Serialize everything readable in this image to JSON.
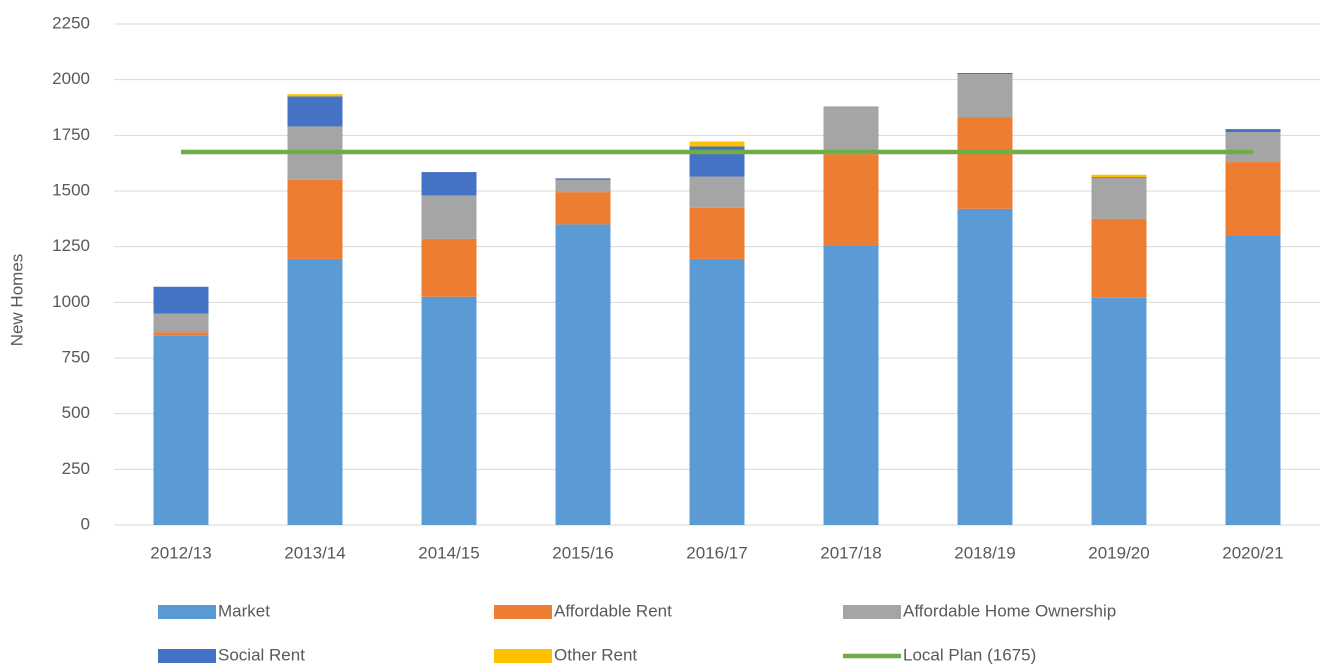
{
  "chart_data": {
    "type": "bar",
    "stacked": true,
    "y_label": "New Homes",
    "categories": [
      "2012/13",
      "2013/14",
      "2014/15",
      "2015/16",
      "2016/17",
      "2017/18",
      "2018/19",
      "2019/20",
      "2020/21"
    ],
    "series": [
      {
        "name": "Market",
        "color": "#5b9bd5",
        "values": [
          850,
          1195,
          1025,
          1350,
          1195,
          1255,
          1420,
          1020,
          1300
        ]
      },
      {
        "name": "Affordable Rent",
        "color": "#ed7d31",
        "values": [
          15,
          355,
          260,
          145,
          230,
          410,
          410,
          355,
          330
        ]
      },
      {
        "name": "Affordable Home Ownership",
        "color": "#a5a5a5",
        "values": [
          85,
          240,
          195,
          55,
          140,
          215,
          195,
          185,
          135
        ]
      },
      {
        "name": "Social Rent",
        "color": "#4472c4",
        "values": [
          120,
          135,
          105,
          7,
          135,
          0,
          5,
          3,
          13
        ]
      },
      {
        "name": "Other Rent",
        "color": "#ffc000",
        "values": [
          0,
          10,
          0,
          0,
          22,
          0,
          0,
          10,
          0
        ]
      },
      {
        "name": "Local Plan (1675)",
        "color": "#70ad47",
        "type": "line",
        "values": [
          1675,
          1675,
          1675,
          1675,
          1675,
          1675,
          1675,
          1675,
          1675
        ]
      }
    ],
    "ylim": [
      0,
      2250
    ],
    "yticks": [
      0,
      250,
      500,
      750,
      1000,
      1250,
      1500,
      1750,
      2000,
      2250
    ],
    "grid": true,
    "legend": "bottom"
  }
}
